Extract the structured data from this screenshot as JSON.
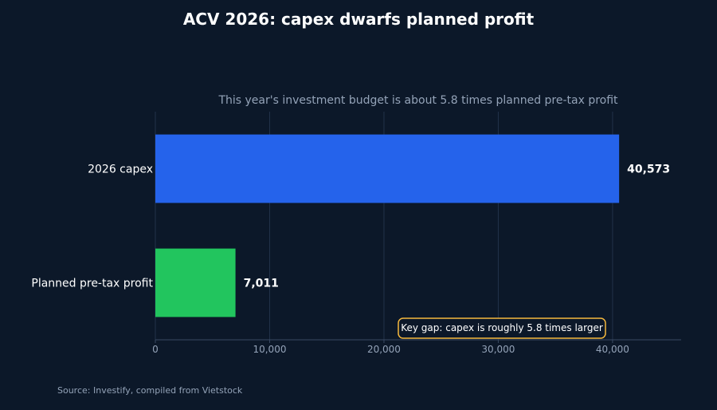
{
  "chart_data": {
    "type": "bar",
    "orientation": "horizontal",
    "title": "ACV 2026: capex dwarfs planned profit",
    "subtitle": "This year's investment budget is about 5.8 times planned pre-tax profit",
    "categories": [
      "2026 capex",
      "Planned pre-tax profit"
    ],
    "values": [
      40573,
      7011
    ],
    "value_labels": [
      "40,573",
      "7,011"
    ],
    "bar_colors": [
      "#2563eb",
      "#22c55e"
    ],
    "xlim": [
      0,
      46000
    ],
    "xticks": [
      0,
      10000,
      20000,
      30000,
      40000
    ],
    "xtick_labels": [
      "0",
      "10,000",
      "20,000",
      "30,000",
      "40,000"
    ],
    "xlabel": "",
    "ylabel": "",
    "grid": "vertical",
    "annotation": "Key gap: capex is roughly 5.8 times larger",
    "annotation_border_color": "#f5b83d",
    "source": "Source: Investify, compiled from Vietstock"
  }
}
